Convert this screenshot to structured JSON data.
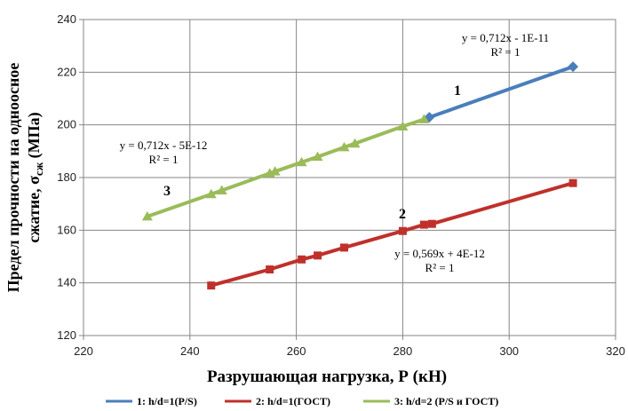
{
  "chart_data": {
    "type": "scatter",
    "xlabel": "Разрушающая нагрузка, Р (кН)",
    "ylabel_main": "Предел прочности на одноосное",
    "ylabel_second": "сжатие, ",
    "ylabel_sigma": "σ",
    "ylabel_sub": "сж",
    "ylabel_unit": " (МПа)",
    "xlim": [
      220,
      320
    ],
    "ylim": [
      120,
      240
    ],
    "xticks": [
      "220",
      "240",
      "260",
      "280",
      "300",
      "320"
    ],
    "yticks": [
      "120",
      "140",
      "160",
      "180",
      "200",
      "220",
      "240"
    ],
    "grid": true,
    "legend_position": "bottom",
    "series": [
      {
        "name": "1: h/d=1(P/S)",
        "number_label": "1",
        "color": "#4A7EBB",
        "marker": "diamond",
        "x": [
          285,
          312
        ],
        "y": [
          202.9,
          222.1
        ],
        "equation": "y = 0,712x - 1E-11",
        "r2": "R² = 1"
      },
      {
        "name": "2: h/d=1(ГОСТ)",
        "number_label": "2",
        "color": "#C0302B",
        "marker": "square",
        "x": [
          244,
          255,
          261,
          264,
          269,
          280,
          284,
          285.5,
          312
        ],
        "y": [
          139.0,
          145.1,
          148.9,
          150.4,
          153.4,
          159.7,
          162.1,
          162.4,
          177.9
        ],
        "equation": "y = 0,569x + 4E-12",
        "r2": "R² = 1"
      },
      {
        "name": "3: h/d=2 (P/S и ГОСТ)",
        "number_label": "3",
        "color": "#9BBB59",
        "marker": "triangle",
        "x": [
          232,
          244,
          246,
          255,
          256,
          261,
          264,
          269,
          271,
          280,
          284
        ],
        "y": [
          165.2,
          173.7,
          175.1,
          181.6,
          182.3,
          185.8,
          187.9,
          191.5,
          192.9,
          199.4,
          202.1
        ],
        "equation": "y = 0,712x - 5E-12",
        "r2": "R² = 1"
      }
    ]
  }
}
